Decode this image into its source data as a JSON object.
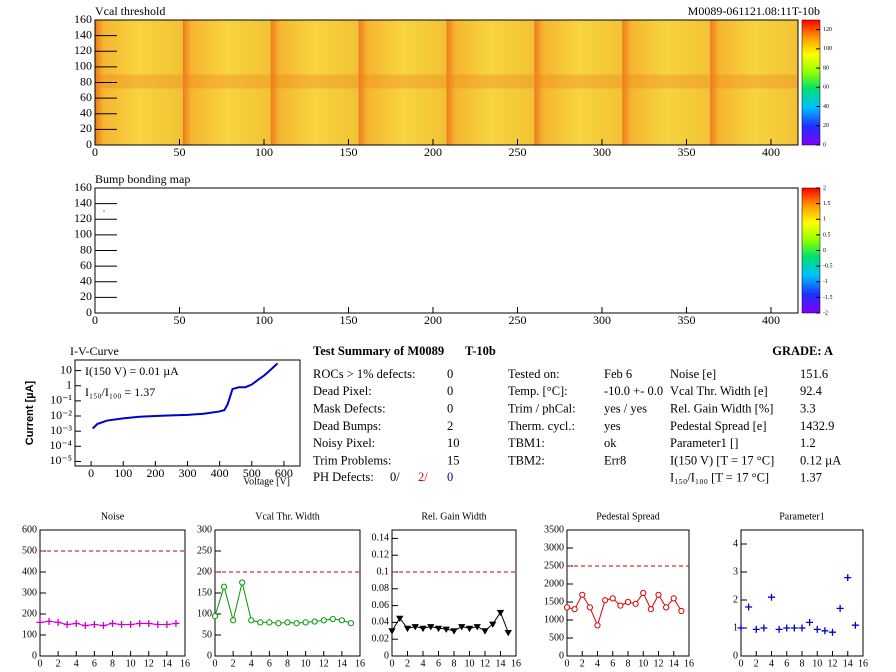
{
  "chart_data": [
    {
      "type": "heatmap",
      "title": "Vcal threshold",
      "subtitle": "M0089-061121.08:11T-10b",
      "xlim": [
        0,
        416
      ],
      "ylim": [
        0,
        160
      ],
      "xticks": [
        0,
        50,
        100,
        150,
        200,
        250,
        300,
        350,
        400
      ],
      "yticks": [
        0,
        20,
        40,
        60,
        80,
        100,
        120,
        140,
        160
      ],
      "zlim": [
        0,
        130
      ],
      "zticks": [
        0,
        20,
        40,
        60,
        80,
        100,
        120
      ]
    },
    {
      "type": "heatmap",
      "title": "Bump bonding map",
      "xlim": [
        0,
        416
      ],
      "ylim": [
        0,
        160
      ],
      "xticks": [
        0,
        50,
        100,
        150,
        200,
        250,
        300,
        350,
        400
      ],
      "yticks": [
        0,
        20,
        40,
        60,
        80,
        100,
        120,
        140,
        160
      ],
      "zlim": [
        -2,
        2
      ],
      "zticks": [
        -2,
        -1.5,
        -1,
        -0.5,
        0,
        0.5,
        1,
        1.5,
        2
      ]
    },
    {
      "type": "line",
      "title": "I-V-Curve",
      "xlabel": "Voltage [V]",
      "ylabel": "Current [µA]",
      "annotations": [
        "I(150 V) = 0.01 µA",
        "I₁₅₀/I₁₀₀ =  1.37"
      ],
      "log_y": true,
      "color": "#0000cc",
      "line": true,
      "marker": "none",
      "x": [
        5,
        20,
        50,
        100,
        150,
        200,
        250,
        300,
        350,
        400,
        415,
        425,
        440,
        460,
        480,
        500,
        520,
        540,
        560,
        580
      ],
      "values": [
        0.0015,
        0.003,
        0.005,
        0.007,
        0.009,
        0.01,
        0.011,
        0.012,
        0.014,
        0.02,
        0.025,
        0.06,
        0.6,
        0.8,
        0.8,
        1.2,
        2.5,
        5,
        12,
        30
      ],
      "xlim": [
        -50,
        650
      ],
      "ylim": [
        5e-06,
        50
      ],
      "xticks": [
        0,
        100,
        200,
        300,
        400,
        500,
        600
      ],
      "yticks": [
        {
          "value": 1e-05,
          "label": "10⁻⁵"
        },
        {
          "value": 0.0001,
          "label": "10⁻⁴"
        },
        {
          "value": 0.001,
          "label": "10⁻³"
        },
        {
          "value": 0.01,
          "label": "10⁻²"
        },
        {
          "value": 0.1,
          "label": "10⁻¹"
        },
        1,
        10
      ]
    },
    {
      "type": "line",
      "title": "Noise",
      "color": "#cc00cc",
      "line": true,
      "marker": "plus",
      "threshold": 500,
      "x": [
        0,
        1,
        2,
        3,
        4,
        5,
        6,
        7,
        8,
        9,
        10,
        11,
        12,
        13,
        14,
        15
      ],
      "values": [
        160,
        165,
        160,
        150,
        155,
        145,
        150,
        145,
        155,
        150,
        150,
        155,
        155,
        150,
        150,
        155
      ],
      "xlim": [
        0,
        16
      ],
      "ylim": [
        0,
        600
      ],
      "xticks": [
        0,
        2,
        4,
        6,
        8,
        10,
        12,
        14,
        16
      ],
      "yticks": [
        0,
        100,
        200,
        300,
        400,
        500,
        600
      ]
    },
    {
      "type": "line",
      "title": "Vcal Thr. Width",
      "color": "#009900",
      "line": true,
      "marker": "circle",
      "threshold": 200,
      "x": [
        0,
        1,
        2,
        3,
        4,
        5,
        6,
        7,
        8,
        9,
        10,
        11,
        12,
        13,
        14,
        15
      ],
      "values": [
        95,
        165,
        85,
        175,
        85,
        80,
        80,
        78,
        80,
        78,
        80,
        82,
        85,
        88,
        85,
        78
      ],
      "xlim": [
        0,
        16
      ],
      "ylim": [
        0,
        300
      ],
      "xticks": [
        0,
        2,
        4,
        6,
        8,
        10,
        12,
        14,
        16
      ],
      "yticks": [
        0,
        50,
        100,
        150,
        200,
        250,
        300
      ]
    },
    {
      "type": "line",
      "title": "Rel. Gain Width",
      "color": "#000000",
      "line": true,
      "marker": "triangle",
      "threshold": 0.1,
      "x": [
        0,
        1,
        2,
        3,
        4,
        5,
        6,
        7,
        8,
        9,
        10,
        11,
        12,
        13,
        14,
        15
      ],
      "values": [
        0.03,
        0.045,
        0.033,
        0.035,
        0.033,
        0.035,
        0.033,
        0.032,
        0.03,
        0.035,
        0.033,
        0.035,
        0.03,
        0.038,
        0.052,
        0.028
      ],
      "xlim": [
        0,
        16
      ],
      "ylim": [
        0,
        0.15
      ],
      "xticks": [
        0,
        2,
        4,
        6,
        8,
        10,
        12,
        14,
        16
      ],
      "yticks": [
        0,
        0.02,
        0.04,
        0.06,
        0.08,
        0.1,
        0.12,
        0.14
      ]
    },
    {
      "type": "line",
      "title": "Pedestal Spread",
      "color": "#dd0000",
      "line": true,
      "marker": "circle",
      "threshold": 2500,
      "x": [
        0,
        1,
        2,
        3,
        4,
        5,
        6,
        7,
        8,
        9,
        10,
        11,
        12,
        13,
        14,
        15
      ],
      "values": [
        1350,
        1300,
        1700,
        1350,
        850,
        1550,
        1600,
        1400,
        1500,
        1450,
        1750,
        1300,
        1700,
        1350,
        1600,
        1250
      ],
      "xlim": [
        0,
        16
      ],
      "ylim": [
        0,
        3500
      ],
      "xticks": [
        0,
        2,
        4,
        6,
        8,
        10,
        12,
        14,
        16
      ],
      "yticks": [
        0,
        500,
        1000,
        1500,
        2000,
        2500,
        3000,
        3500
      ]
    },
    {
      "type": "line",
      "title": "Parameter1",
      "color": "#0000cc",
      "line": false,
      "marker": "plus",
      "x": [
        0,
        1,
        2,
        3,
        4,
        5,
        6,
        7,
        8,
        9,
        10,
        11,
        12,
        13,
        14,
        15
      ],
      "values": [
        1.0,
        1.75,
        0.95,
        1.0,
        2.1,
        0.95,
        1.0,
        1.0,
        1.0,
        1.2,
        0.95,
        0.9,
        0.85,
        1.7,
        2.8,
        1.1
      ],
      "xlim": [
        0,
        16
      ],
      "ylim": [
        0,
        4.5
      ],
      "xticks": [
        0,
        2,
        4,
        6,
        8,
        10,
        12,
        14,
        16
      ],
      "yticks": [
        0,
        1,
        2,
        3,
        4
      ]
    }
  ],
  "summary": {
    "title": "Test Summary of M0089",
    "module_type": "T-10b",
    "grade": "GRADE:  A",
    "left": [
      [
        "ROCs > 1% defects:",
        0
      ],
      [
        "Dead Pixel:",
        0
      ],
      [
        "Mask Defects:",
        0
      ],
      [
        "Dead Bumps:",
        2
      ],
      [
        "Noisy Pixel:",
        10
      ],
      [
        "Trim Problems:",
        15
      ]
    ],
    "ph_label": "PH Defects:",
    "ph_values": [
      "0/",
      "2/",
      "0"
    ],
    "middle": [
      [
        "Tested on:",
        "Feb 6"
      ],
      [
        "Temp. [°C]:",
        "-10.0 +- 0.0"
      ],
      [
        "Trim / phCal:",
        "yes / yes"
      ],
      [
        "Therm. cycl.:",
        "yes"
      ],
      [
        "TBM1:",
        "ok"
      ],
      [
        "TBM2:",
        "Err8"
      ]
    ],
    "right": [
      [
        "Noise [e]",
        151.6
      ],
      [
        "Vcal Thr. Width [e]",
        92.4
      ],
      [
        "Rel. Gain Width [%]",
        3.3
      ],
      [
        "Pedestal Spread [e]",
        1432.9
      ],
      [
        "Parameter1 []",
        1.2
      ],
      [
        "I(150 V)  [T = 17 °C]",
        "0.12 µA"
      ],
      [
        "I₁₅₀/I₁₀₀  [T = 17 °C]",
        1.37
      ]
    ]
  }
}
